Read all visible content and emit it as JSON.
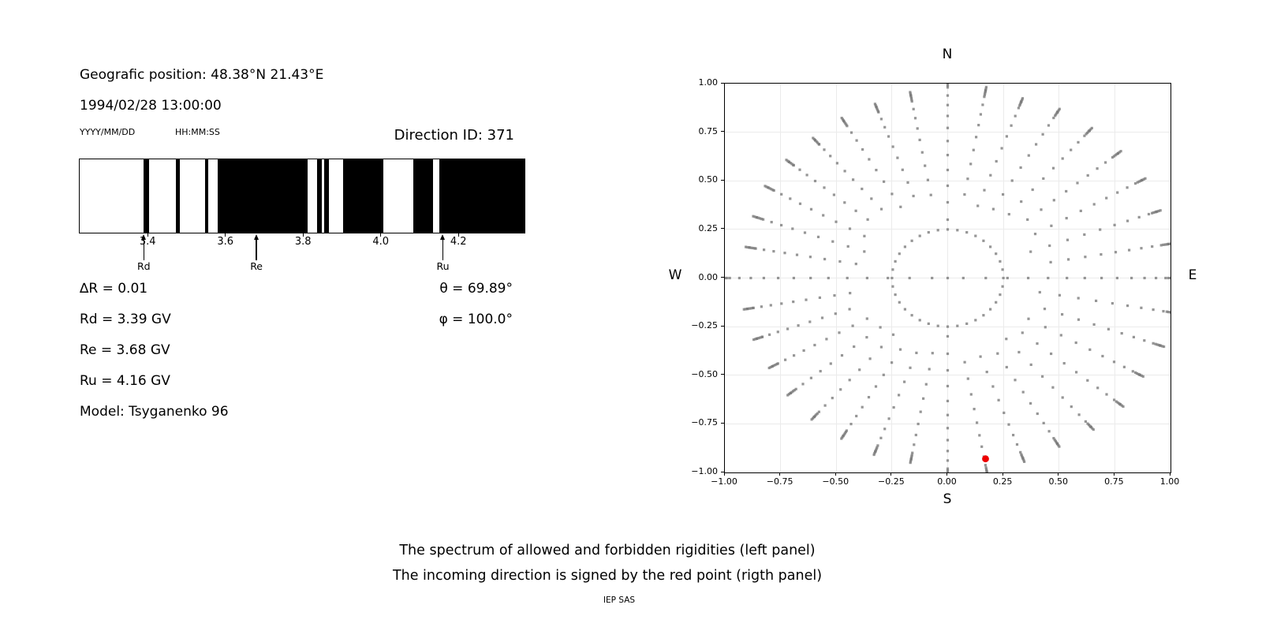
{
  "left_panel": {
    "position_line": "Geografic position: 48.38°N 21.43°E",
    "datetime_line": "1994/02/28 13:00:00",
    "date_format_label": "YYYY/MM/DD",
    "time_format_label": "HH:MM:SS",
    "direction_id_label": "Direction ID: 371",
    "info_lines": [
      "∆R = 0.01",
      "Rd = 3.39 GV",
      "Re = 3.68 GV",
      "Ru = 4.16 GV",
      "Model: Tsyganenko 96"
    ],
    "angle_lines": [
      "θ = 69.89°",
      "φ = 100.0°"
    ]
  },
  "caption": {
    "line1": "The spectrum of allowed and forbidden rigidities (left panel)",
    "line2": "The incoming direction is signed by the red point (rigth panel)",
    "credit": "IEP SAS"
  },
  "colors": {
    "foreground": "#000000",
    "allowed_bar": "#000000",
    "forbidden_bg": "#ffffff",
    "grid": "#ebebeb",
    "gray_marker": "#787878",
    "red_point": "#ee0000"
  },
  "chart_data": [
    {
      "type": "bar",
      "panel": "left",
      "description": "Binary rigidity spectrum barcode: black intervals = allowed rigidities, white = forbidden",
      "xlim": [
        3.225,
        4.37
      ],
      "xticks": [
        3.4,
        3.6,
        3.8,
        4.0,
        4.2
      ],
      "allowed_intervals_gv": [
        [
          3.39,
          3.404
        ],
        [
          3.473,
          3.482
        ],
        [
          3.548,
          3.557
        ],
        [
          3.581,
          3.811
        ],
        [
          3.836,
          3.848
        ],
        [
          3.854,
          3.866
        ],
        [
          3.903,
          4.007
        ],
        [
          4.084,
          4.135
        ],
        [
          4.15,
          4.37
        ]
      ],
      "arrows": [
        {
          "label": "Rd",
          "rigidity_gv": 3.39
        },
        {
          "label": "Re",
          "rigidity_gv": 3.68
        },
        {
          "label": "Ru",
          "rigidity_gv": 4.16
        }
      ],
      "delta_r_gv": 0.01
    },
    {
      "type": "scatter",
      "panel": "right",
      "description": "Asymptotic / incoming direction map; gray dotted spokes every 10 degrees of azimuth, red point marks the incoming direction",
      "xlim": [
        -1,
        1
      ],
      "ylim": [
        -1,
        1
      ],
      "xticks": [
        -1.0,
        -0.75,
        -0.5,
        -0.25,
        0.0,
        0.25,
        0.5,
        0.75,
        1.0
      ],
      "yticks": [
        -1.0,
        -0.75,
        -0.5,
        -0.25,
        0.0,
        0.25,
        0.5,
        0.75,
        1.0
      ],
      "grid": true,
      "compass": {
        "top": "N",
        "bottom": "S",
        "left": "W",
        "right": "E"
      },
      "marker": "square",
      "marker_size_px": 3.2,
      "marker_alpha": 0.78,
      "red_point": {
        "x": 0.17,
        "y": -0.93,
        "radius_px": 4.4
      },
      "pattern": {
        "azimuth_step_deg": 10,
        "ring_radius": 0.25,
        "center_dot": true,
        "cardinal_inner_radius": 0.3,
        "east_west_inner_radius": 0.07,
        "other_inner_radius": 0.42,
        "tip_radius_base": 0.965,
        "tip_radius_east_bias": 0.05,
        "cardinal_tip_radius": 1.03,
        "dots_per_spoke": 11,
        "cardinal_dots_per_spoke": 13,
        "east_west_dots_per_spoke": 15,
        "tip_cluster_dots": 5
      }
    }
  ]
}
